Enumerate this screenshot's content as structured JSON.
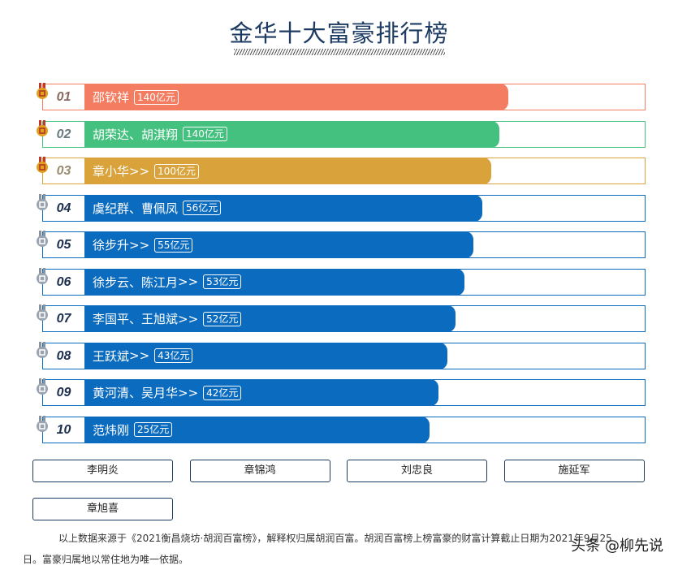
{
  "title": "金华十大富豪排行榜",
  "colors": {
    "top1": "#f47c60",
    "top2": "#45c17f",
    "top3": "#d9a23a",
    "other": "#0b6bbf",
    "gold_medal": "#e0a020",
    "silver_medal": "#9aa4b0"
  },
  "ranking": [
    {
      "rank": "01",
      "name": "邵钦祥",
      "amount": "140亿元",
      "value": 140,
      "link": false,
      "color": "#f47c60",
      "num_color": "#8a6a60",
      "medal": "gold-medal-icon"
    },
    {
      "rank": "02",
      "name": "胡荣达、胡淇翔",
      "amount": "140亿元",
      "value": 140,
      "link": false,
      "color": "#45c17f",
      "num_color": "#6b7b80",
      "medal": "gold-medal-icon"
    },
    {
      "rank": "03",
      "name": "章小华",
      "amount": "100亿元",
      "value": 100,
      "link": true,
      "color": "#d9a23a",
      "num_color": "#9a8a70",
      "medal": "gold-medal-icon"
    },
    {
      "rank": "04",
      "name": "虞纪群、曹佩凤",
      "amount": "56亿元",
      "value": 56,
      "link": false,
      "color": "#0b6bbf",
      "num_color": "#1c2f4f",
      "medal": "silver-medal-icon"
    },
    {
      "rank": "05",
      "name": "徐步升",
      "amount": "55亿元",
      "value": 55,
      "link": true,
      "color": "#0b6bbf",
      "num_color": "#1c2f4f",
      "medal": "silver-medal-icon"
    },
    {
      "rank": "06",
      "name": "徐步云、陈江月",
      "amount": "53亿元",
      "value": 53,
      "link": true,
      "color": "#0b6bbf",
      "num_color": "#1c2f4f",
      "medal": "silver-medal-icon"
    },
    {
      "rank": "07",
      "name": "李国平、王旭斌",
      "amount": "52亿元",
      "value": 52,
      "link": true,
      "color": "#0b6bbf",
      "num_color": "#1c2f4f",
      "medal": "silver-medal-icon"
    },
    {
      "rank": "08",
      "name": "王跃斌",
      "amount": "43亿元",
      "value": 43,
      "link": true,
      "color": "#0b6bbf",
      "num_color": "#1c2f4f",
      "medal": "silver-medal-icon"
    },
    {
      "rank": "09",
      "name": "黄河清、吴月华",
      "amount": "42亿元",
      "value": 42,
      "link": true,
      "color": "#0b6bbf",
      "num_color": "#1c2f4f",
      "medal": "silver-medal-icon"
    },
    {
      "rank": "10",
      "name": "范炜刚",
      "amount": "25亿元",
      "value": 25,
      "link": false,
      "color": "#0b6bbf",
      "num_color": "#1c2f4f",
      "medal": "silver-medal-icon"
    }
  ],
  "link_marker": ">>",
  "others": [
    "李明炎",
    "章锦鸿",
    "刘忠良",
    "施延军",
    "章旭喜"
  ],
  "note_line1": "以上数据来源于《2021衡昌烧坊·胡润百富榜》，解释权归属胡润百富。胡润百富榜上榜富豪的财富计算截止日期为2021年9月25",
  "note_line2": "日。富豪归属地以常住地为唯一依据。",
  "watermark": "头条 @柳先说"
}
